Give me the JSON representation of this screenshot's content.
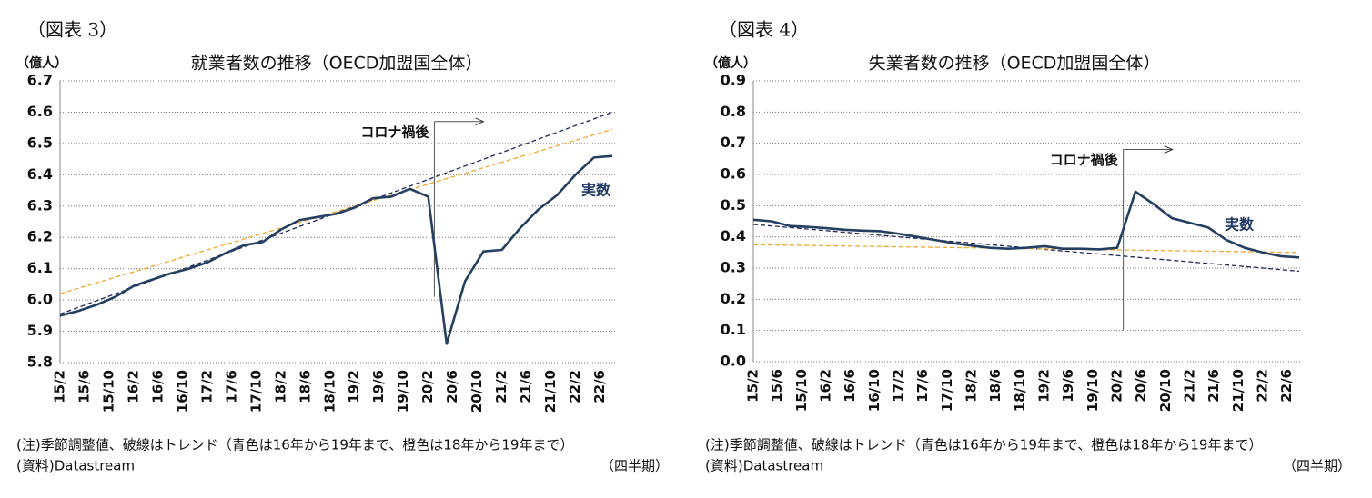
{
  "chart_data": [
    {
      "type": "line",
      "figure_label": "（図表 3）",
      "title": "就業者数の推移（OECD加盟国全体）",
      "y_unit": "（億人）",
      "ylim": [
        5.8,
        6.7
      ],
      "yticks": [
        5.8,
        5.9,
        {
          "value": 6,
          "label": "6.0"
        },
        6.1,
        6.2,
        6.3,
        6.4,
        6.5,
        6.6,
        6.7
      ],
      "xticks": [
        "15/2",
        "15/6",
        "15/10",
        "16/2",
        "16/6",
        "16/10",
        "17/2",
        "17/6",
        "17/10",
        "18/2",
        "18/6",
        "18/10",
        "19/2",
        "19/6",
        "19/10",
        "20/2",
        "20/6",
        "20/10",
        "21/2",
        "21/6",
        "21/10",
        "22/2",
        "22/6"
      ],
      "grid": true,
      "x": [
        "15/2",
        "15/5",
        "15/8",
        "15/11",
        "16/2",
        "16/5",
        "16/8",
        "16/11",
        "17/2",
        "17/5",
        "17/8",
        "17/11",
        "18/2",
        "18/5",
        "18/8",
        "18/11",
        "19/2",
        "19/5",
        "19/8",
        "19/11",
        "20/2",
        "20/5",
        "20/8",
        "20/11",
        "21/2",
        "21/5",
        "21/8",
        "21/11",
        "22/2",
        "22/5",
        "22/8"
      ],
      "series": [
        {
          "name": "実数",
          "color": "#243f60",
          "values": [
            5.95,
            5.965,
            5.985,
            6.01,
            6.045,
            6.065,
            6.085,
            6.1,
            6.12,
            6.15,
            6.175,
            6.185,
            6.225,
            6.255,
            6.265,
            6.275,
            6.295,
            6.325,
            6.33,
            6.355,
            6.33,
            5.86,
            6.06,
            6.155,
            6.16,
            6.23,
            6.29,
            6.335,
            6.4,
            6.455,
            6.46
          ]
        }
      ],
      "trends": [
        {
          "color": "#1f2a5a",
          "x": [
            "15/2",
            "22/8"
          ],
          "values": [
            5.955,
            6.6
          ]
        },
        {
          "color": "#f0a830",
          "x": [
            "15/2",
            "22/8"
          ],
          "values": [
            6.02,
            6.545
          ]
        }
      ],
      "annotation": {
        "text": "コロナ禍後",
        "x": "20/3",
        "y_range": [
          6.01,
          6.57
        ]
      },
      "notes": [
        "(注)季節調整値、破線はトレンド（青色は16年から19年まで、橙色は18年から19年まで）",
        "(資料)Datastream"
      ],
      "x_unit": "（四半期）"
    },
    {
      "type": "line",
      "figure_label": "（図表 4）",
      "title": "失業者数の推移（OECD加盟国全体）",
      "y_unit": "（億人）",
      "ylim": [
        0,
        0.9
      ],
      "yticks": [
        {
          "value": 0,
          "label": "0.0"
        },
        0.1,
        0.2,
        0.3,
        0.4,
        0.5,
        0.6,
        0.7,
        0.8,
        0.9
      ],
      "xticks": [
        "15/2",
        "15/6",
        "15/10",
        "16/2",
        "16/6",
        "16/10",
        "17/2",
        "17/6",
        "17/10",
        "18/2",
        "18/6",
        "18/10",
        "19/2",
        "19/6",
        "19/10",
        "20/2",
        "20/6",
        "20/10",
        "21/2",
        "21/6",
        "21/10",
        "22/2",
        "22/6"
      ],
      "grid": true,
      "x": [
        "15/2",
        "15/5",
        "15/8",
        "15/11",
        "16/2",
        "16/5",
        "16/8",
        "16/11",
        "17/2",
        "17/5",
        "17/8",
        "17/11",
        "18/2",
        "18/5",
        "18/8",
        "18/11",
        "19/2",
        "19/5",
        "19/8",
        "19/11",
        "20/2",
        "20/5",
        "20/8",
        "20/11",
        "21/2",
        "21/5",
        "21/8",
        "21/11",
        "22/2",
        "22/5",
        "22/8"
      ],
      "series": [
        {
          "name": "実数",
          "color": "#243f60",
          "values": [
            0.455,
            0.45,
            0.435,
            0.432,
            0.428,
            0.423,
            0.42,
            0.418,
            0.41,
            0.4,
            0.39,
            0.38,
            0.372,
            0.365,
            0.362,
            0.365,
            0.37,
            0.362,
            0.362,
            0.36,
            0.365,
            0.545,
            0.505,
            0.46,
            0.445,
            0.43,
            0.39,
            0.365,
            0.35,
            0.338,
            0.334
          ]
        }
      ],
      "trends": [
        {
          "color": "#1f2a5a",
          "x": [
            "15/2",
            "22/8"
          ],
          "values": [
            0.44,
            0.29
          ]
        },
        {
          "color": "#f0a830",
          "x": [
            "15/2",
            "22/8"
          ],
          "values": [
            0.375,
            0.35
          ]
        }
      ],
      "annotation": {
        "text": "コロナ禍後",
        "x": "20/3",
        "y_range": [
          0.1,
          0.68
        ]
      },
      "notes": [
        "(注)季節調整値、破線はトレンド（青色は16年から19年まで、橙色は18年から19年まで）",
        "(資料)Datastream"
      ],
      "x_unit": "（四半期）"
    }
  ]
}
